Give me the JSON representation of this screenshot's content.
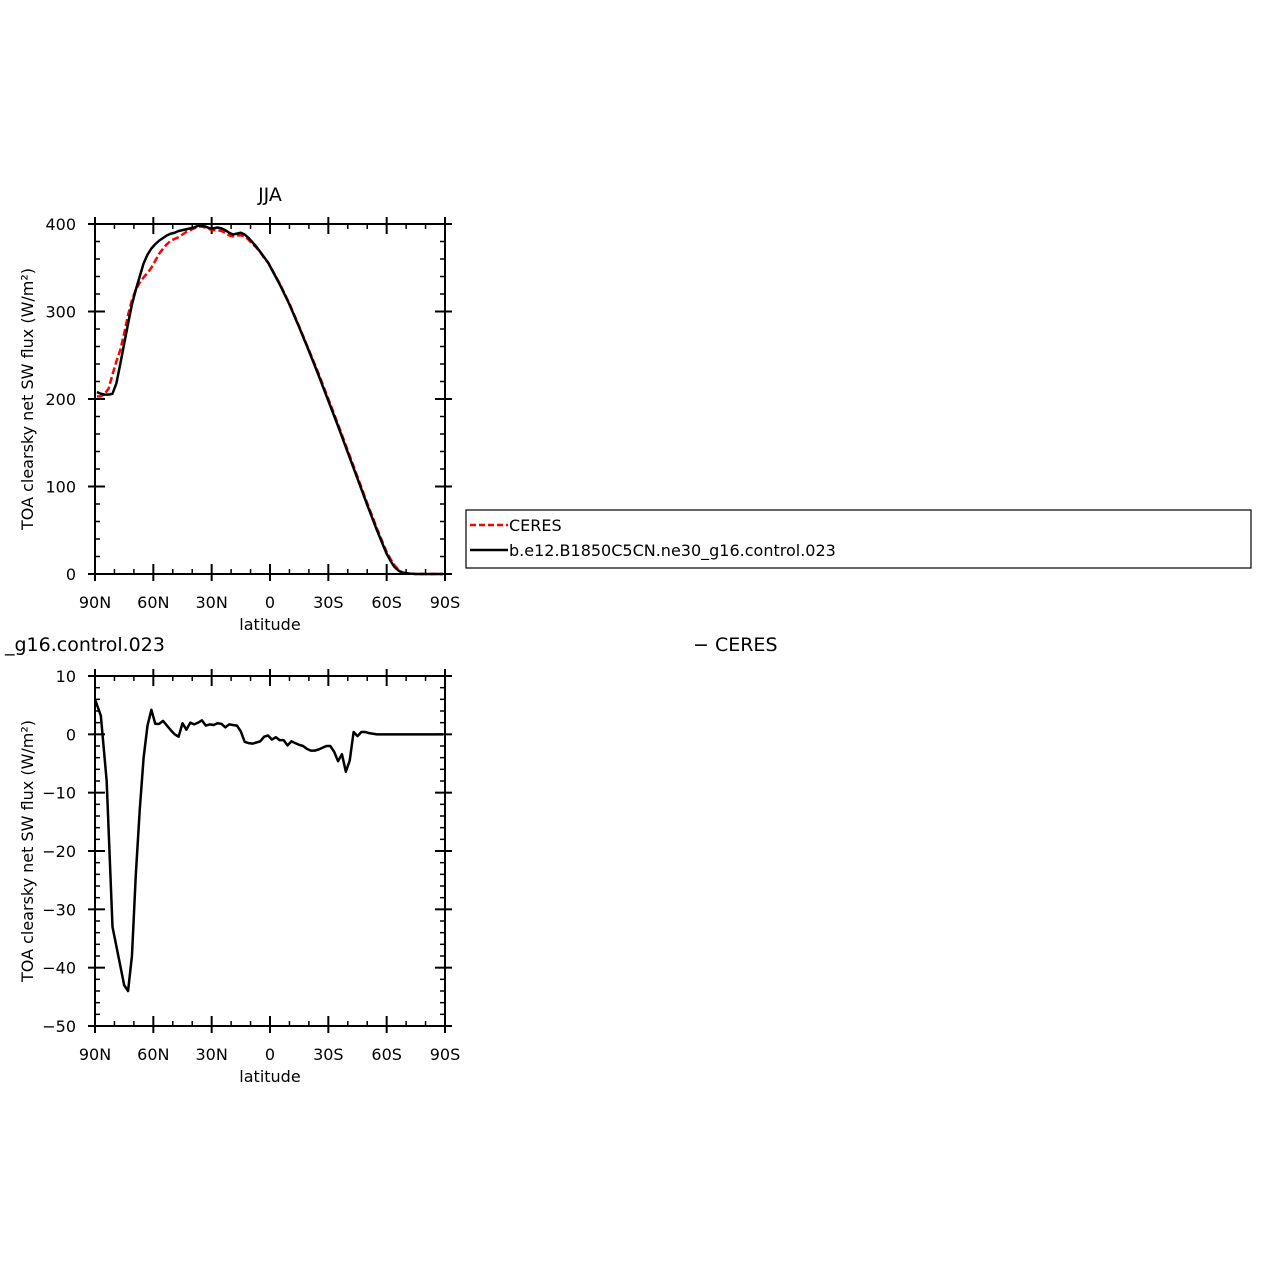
{
  "chart_data": [
    {
      "type": "line",
      "title": "JJA",
      "xlabel": "latitude",
      "ylabel": "TOA clearsky net SW flux (W/m²)",
      "xlim": [
        90,
        -90
      ],
      "ylim": [
        0,
        400
      ],
      "x_ticks": [
        90,
        60,
        30,
        0,
        -30,
        -60,
        -90
      ],
      "x_tick_labels": [
        "90N",
        "60N",
        "30N",
        "0",
        "30S",
        "60S",
        "90S"
      ],
      "y_ticks": [
        0,
        100,
        200,
        300,
        400
      ],
      "y_tick_labels": [
        "0",
        "100",
        "200",
        "300",
        "400"
      ],
      "legend": {
        "placement": "right",
        "entries": [
          "CERES",
          "b.e12.B1850C5CN.ne30_g16.control.023"
        ]
      },
      "series": [
        {
          "name": "CERES",
          "color": "#ff0000",
          "dash": "dashed",
          "x": [
            89,
            87,
            85,
            83,
            81,
            79,
            77,
            75,
            73,
            71,
            69,
            67,
            65,
            63,
            61,
            59,
            57,
            55,
            53,
            51,
            49,
            47,
            45,
            43,
            41,
            39,
            37,
            35,
            33,
            31,
            29,
            27,
            25,
            23,
            21,
            19,
            17,
            15,
            13,
            11,
            9,
            7,
            5,
            3,
            1,
            -5,
            -10,
            -15,
            -20,
            -25,
            -30,
            -35,
            -40,
            -45,
            -50,
            -55,
            -60,
            -62,
            -64,
            -66,
            -68,
            -70,
            -72,
            -75,
            -80,
            -85,
            -89
          ],
          "y": [
            203,
            203,
            206,
            212,
            228,
            243,
            256,
            275,
            296,
            313,
            325,
            333,
            339,
            344,
            350,
            358,
            366,
            372,
            377,
            381,
            383,
            385,
            388,
            391,
            393,
            395,
            397,
            397,
            396,
            394,
            393,
            393,
            392,
            390,
            387,
            386,
            387,
            387,
            386,
            382,
            377,
            373,
            368,
            361,
            356,
            332,
            309,
            283,
            256,
            229,
            200,
            171,
            141,
            111,
            81,
            52,
            25,
            17,
            10,
            5,
            2,
            1,
            0.5,
            0,
            0,
            0,
            0
          ]
        },
        {
          "name": "b.e12.B1850C5CN.ne30_g16.control.023",
          "color": "#000000",
          "dash": "solid",
          "x": [
            89,
            87,
            85,
            83,
            81,
            79,
            77,
            75,
            73,
            71,
            69,
            67,
            65,
            63,
            61,
            59,
            57,
            55,
            53,
            51,
            49,
            47,
            45,
            43,
            41,
            39,
            37,
            35,
            33,
            31,
            29,
            27,
            25,
            23,
            21,
            19,
            17,
            15,
            13,
            11,
            9,
            7,
            5,
            3,
            1,
            -5,
            -10,
            -15,
            -20,
            -25,
            -30,
            -35,
            -40,
            -45,
            -50,
            -55,
            -60,
            -62,
            -64,
            -66,
            -68,
            -70,
            -72,
            -75,
            -80,
            -85,
            -89
          ],
          "y": [
            208,
            206,
            205,
            205,
            206,
            218,
            240,
            263,
            286,
            308,
            325,
            340,
            355,
            365,
            372,
            377,
            381,
            384,
            387,
            389,
            390,
            392,
            393,
            394,
            395,
            396,
            398,
            398,
            397,
            395,
            395,
            396,
            395,
            393,
            390,
            388,
            389,
            390,
            388,
            384,
            379,
            374,
            368,
            362,
            356,
            331,
            308,
            282,
            255,
            227,
            198,
            169,
            139,
            109,
            79,
            50,
            23,
            15,
            8,
            4,
            1.5,
            1,
            0.5,
            0,
            0,
            0,
            0
          ]
        }
      ]
    },
    {
      "type": "line",
      "title": "_g16.control.023",
      "title_right": "− CERES",
      "xlabel": "latitude",
      "ylabel": "TOA clearsky net SW flux (W/m²)",
      "xlim": [
        90,
        -90
      ],
      "ylim": [
        -50,
        10
      ],
      "x_ticks": [
        90,
        60,
        30,
        0,
        -30,
        -60,
        -90
      ],
      "x_tick_labels": [
        "90N",
        "60N",
        "30N",
        "0",
        "30S",
        "60S",
        "90S"
      ],
      "y_ticks": [
        10,
        0,
        -10,
        -20,
        -30,
        -40,
        -50
      ],
      "y_tick_labels": [
        "10",
        "0",
        "−10",
        "−20",
        "−30",
        "−40",
        "−50"
      ],
      "series": [
        {
          "color": "#000000",
          "dash": "solid",
          "x": [
            90,
            87,
            84,
            81,
            78,
            75,
            73,
            71,
            69,
            67,
            65,
            63,
            61,
            59,
            57,
            55,
            53,
            51,
            49,
            47,
            45,
            43,
            41,
            39,
            37,
            35,
            33,
            31,
            29,
            27,
            25,
            23,
            21,
            19,
            17,
            15,
            13,
            11,
            9,
            7,
            5,
            3,
            1,
            -1,
            -3,
            -5,
            -7,
            -9,
            -11,
            -13,
            -15,
            -17,
            -19,
            -21,
            -23,
            -25,
            -27,
            -29,
            -31,
            -33,
            -35,
            -37,
            -39,
            -41,
            -43,
            -45,
            -47,
            -49,
            -51,
            -53,
            -55,
            -57,
            -59,
            -61,
            -63,
            -65,
            -67,
            -69,
            -71,
            -73,
            -75,
            -77,
            -79,
            -81,
            -83,
            -85,
            -87,
            -89
          ],
          "y": [
            6,
            3.2,
            -8,
            -33,
            -38,
            -43,
            -44,
            -38,
            -24,
            -13,
            -4,
            1.5,
            4.2,
            1.8,
            1.8,
            2.3,
            1.5,
            0.7,
            0,
            -0.4,
            1.9,
            0.8,
            2,
            1.7,
            2,
            2.4,
            1.5,
            1.7,
            1.6,
            1.9,
            1.8,
            1.2,
            1.7,
            1.6,
            1.5,
            0.5,
            -1.3,
            -1.5,
            -1.6,
            -1.4,
            -1.2,
            -0.4,
            -0.2,
            -0.9,
            -0.5,
            -1,
            -1,
            -1.9,
            -1.2,
            -1.5,
            -1.8,
            -2,
            -2.5,
            -2.8,
            -2.8,
            -2.6,
            -2.3,
            -2,
            -2,
            -3,
            -4.6,
            -3.4,
            -6.4,
            -4.5,
            0.4,
            -0.3,
            0.4,
            0.4,
            0.2,
            0.1,
            0,
            0,
            0,
            0,
            0,
            0,
            0,
            0,
            0,
            0,
            0,
            0,
            0,
            0,
            0,
            0,
            0,
            0
          ]
        }
      ]
    }
  ]
}
